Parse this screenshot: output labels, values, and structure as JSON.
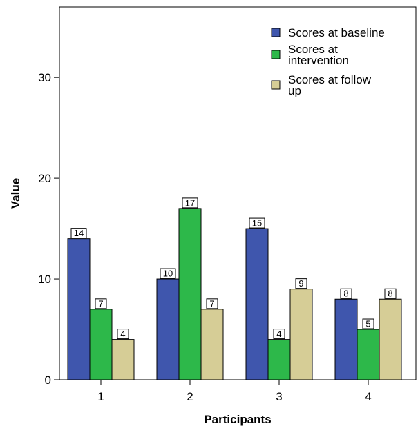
{
  "chart_data": {
    "type": "bar",
    "categories": [
      "1",
      "2",
      "3",
      "4"
    ],
    "series": [
      {
        "name": "Scores at baseline",
        "values": [
          14,
          10,
          15,
          8
        ],
        "color": "#3f56ad"
      },
      {
        "name": "Scores at intervention",
        "values": [
          7,
          17,
          4,
          5
        ],
        "color": "#2db84a"
      },
      {
        "name": "Scores at follow up",
        "values": [
          4,
          7,
          9,
          8
        ],
        "color": "#d6cd96"
      }
    ],
    "xlabel": "Participants",
    "ylabel": "Value",
    "ylim": [
      0,
      37
    ],
    "yticks": [
      0,
      10,
      20,
      30
    ],
    "grid": false,
    "data_labels": true,
    "legend_position": "top-right"
  }
}
